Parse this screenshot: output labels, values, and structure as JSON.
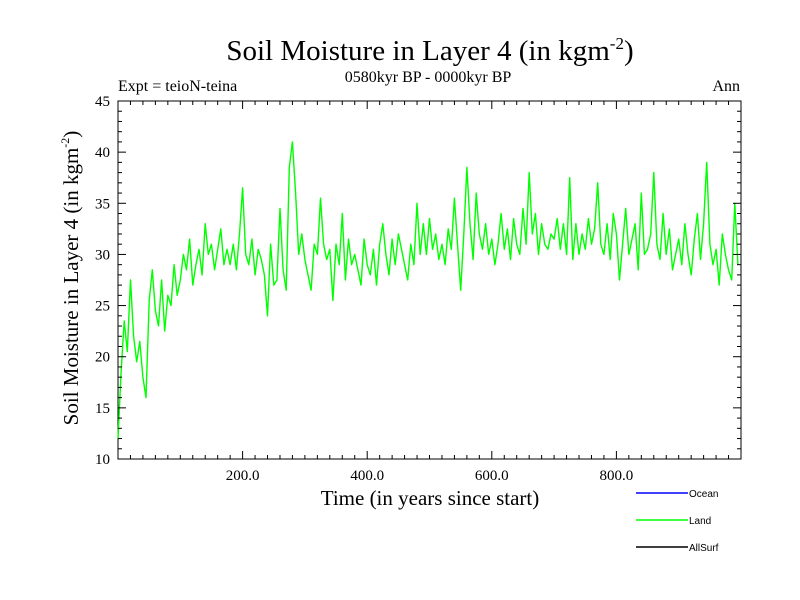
{
  "chart_data": {
    "type": "line",
    "title": "Soil Moisture in Layer 4 (in kgm",
    "title_sup": "-2",
    "title_close": ")",
    "subtitle": "0580kyr BP - 0000kyr BP",
    "left_label": "Expt = teioN-teina",
    "right_label": "Ann",
    "xlabel": "Time (in years since start)",
    "ylabel": "Soil Moisture in Layer 4 (in kgm",
    "ylabel_sup": "-2",
    "ylabel_close": ")",
    "xlim": [
      0,
      1000
    ],
    "ylim": [
      10,
      45
    ],
    "x_ticks": [
      200,
      400,
      600,
      800
    ],
    "x_tick_labels": [
      "200.0",
      "400.0",
      "600.0",
      "800.0"
    ],
    "y_ticks": [
      10,
      15,
      20,
      25,
      30,
      35,
      40,
      45
    ],
    "y_tick_labels": [
      "10",
      "15",
      "20",
      "25",
      "30",
      "35",
      "40",
      "45"
    ],
    "legend": [
      {
        "name": "Ocean",
        "color": "#0000ff"
      },
      {
        "name": "Land",
        "color": "#00ff00"
      },
      {
        "name": "AllSurf",
        "color": "#000000"
      }
    ],
    "series": [
      {
        "name": "Land",
        "color": "#00ff00",
        "x_step": 5,
        "values": [
          12.0,
          18.5,
          23.5,
          20.5,
          27.5,
          22.0,
          19.5,
          21.5,
          18.0,
          16.0,
          25.5,
          28.5,
          24.5,
          23.0,
          27.5,
          22.5,
          26.0,
          25.0,
          29.0,
          26.0,
          27.5,
          30.0,
          28.5,
          31.5,
          27.0,
          29.0,
          30.5,
          28.0,
          33.0,
          30.0,
          31.0,
          28.5,
          30.5,
          32.5,
          29.0,
          30.5,
          29.0,
          31.0,
          28.5,
          32.0,
          36.5,
          30.0,
          29.0,
          31.5,
          28.0,
          30.5,
          29.5,
          28.0,
          24.0,
          31.0,
          27.0,
          27.5,
          34.5,
          28.5,
          26.5,
          38.5,
          41.0,
          36.0,
          30.0,
          32.0,
          29.5,
          28.0,
          26.5,
          31.0,
          30.0,
          35.5,
          31.0,
          29.5,
          30.5,
          25.5,
          31.0,
          29.0,
          34.0,
          27.5,
          31.5,
          29.0,
          30.0,
          28.5,
          27.0,
          31.5,
          29.0,
          28.0,
          30.5,
          27.0,
          31.0,
          33.0,
          30.0,
          28.0,
          31.5,
          29.0,
          32.0,
          30.5,
          29.0,
          27.5,
          31.0,
          29.0,
          35.0,
          30.0,
          33.0,
          30.0,
          33.5,
          30.5,
          32.0,
          29.5,
          31.0,
          29.0,
          32.5,
          30.5,
          35.5,
          31.0,
          26.5,
          32.0,
          38.5,
          33.0,
          29.5,
          36.0,
          32.0,
          30.5,
          33.0,
          30.0,
          31.5,
          29.0,
          31.0,
          34.0,
          30.5,
          32.5,
          29.5,
          33.5,
          31.0,
          30.0,
          34.5,
          31.0,
          38.0,
          32.0,
          34.0,
          30.0,
          33.0,
          31.0,
          30.5,
          32.0,
          31.5,
          33.5,
          30.5,
          33.0,
          30.0,
          37.5,
          29.5,
          33.0,
          30.0,
          32.0,
          30.5,
          33.5,
          31.0,
          32.5,
          37.0,
          31.0,
          30.0,
          33.0,
          29.5,
          34.0,
          32.0,
          27.5,
          31.0,
          34.5,
          30.0,
          31.5,
          33.0,
          28.5,
          36.0,
          30.0,
          30.5,
          32.0,
          38.0,
          31.0,
          29.5,
          34.0,
          30.0,
          32.5,
          28.5,
          30.0,
          31.5,
          29.0,
          33.0,
          30.0,
          28.0,
          31.5,
          34.0,
          29.5,
          33.0,
          39.0,
          31.0,
          29.0,
          30.5,
          27.0,
          32.0,
          30.0,
          28.5,
          27.5,
          35.0,
          29.0
        ]
      }
    ]
  }
}
